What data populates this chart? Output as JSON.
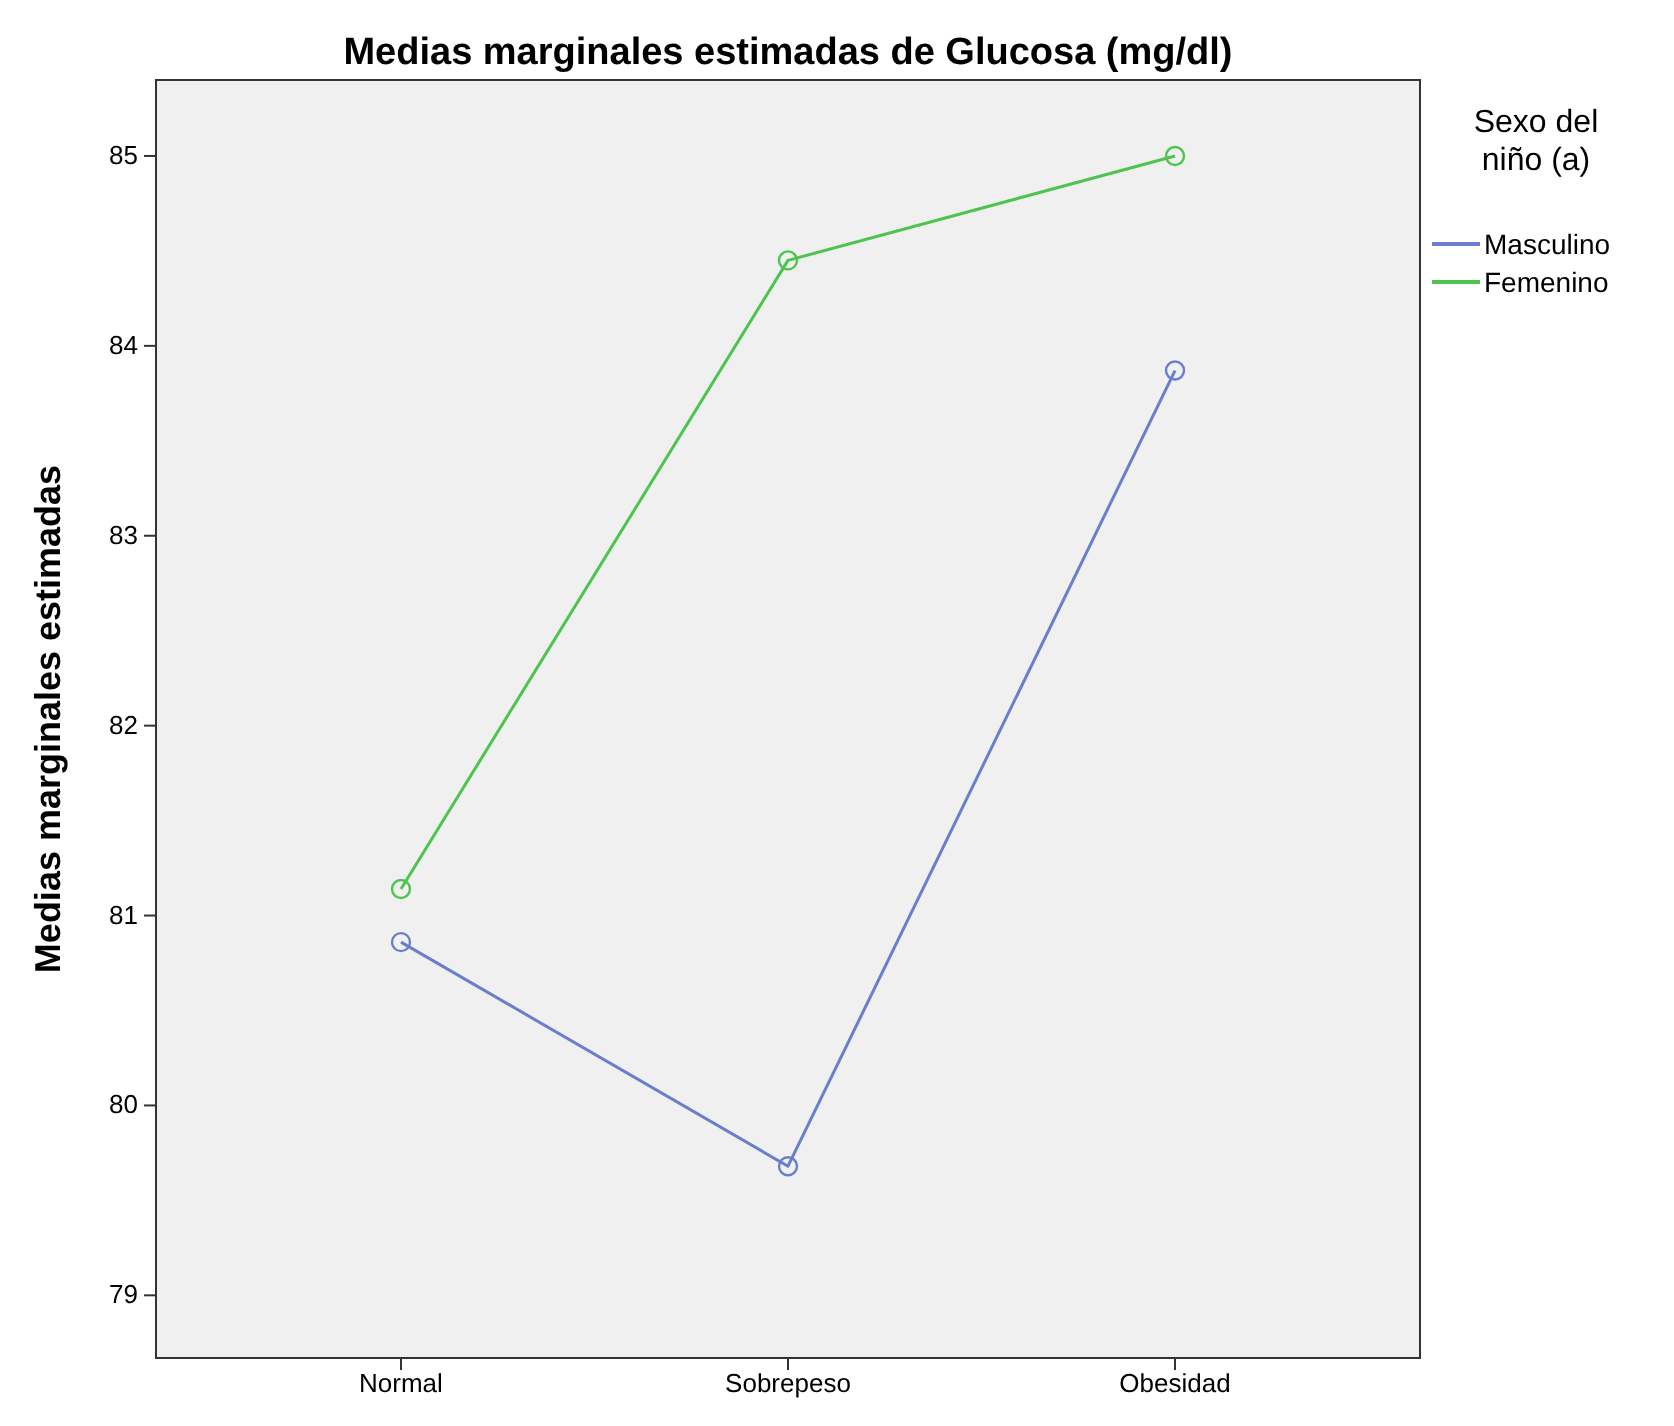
{
  "chart_data": {
    "type": "line",
    "title": "Medias marginales estimadas de Glucosa (mg/dl)",
    "ylabel": "Medias marginales estimadas",
    "legend_title": "Sexo del niño (a)",
    "categories": [
      "Normal",
      "Sobrepeso",
      "Obesidad"
    ],
    "series": [
      {
        "name": "Masculino",
        "color": "#6a7fcc",
        "values": [
          80.86,
          79.68,
          83.87
        ]
      },
      {
        "name": "Femenino",
        "color": "#4ec44e",
        "values": [
          81.14,
          84.45,
          85.0
        ]
      }
    ],
    "ylim": [
      78.67,
      85.4
    ],
    "yticks": [
      79,
      80,
      81,
      82,
      83,
      84,
      85
    ],
    "grid": false,
    "legend": "right",
    "marker": "circle",
    "line_style": "solid"
  }
}
